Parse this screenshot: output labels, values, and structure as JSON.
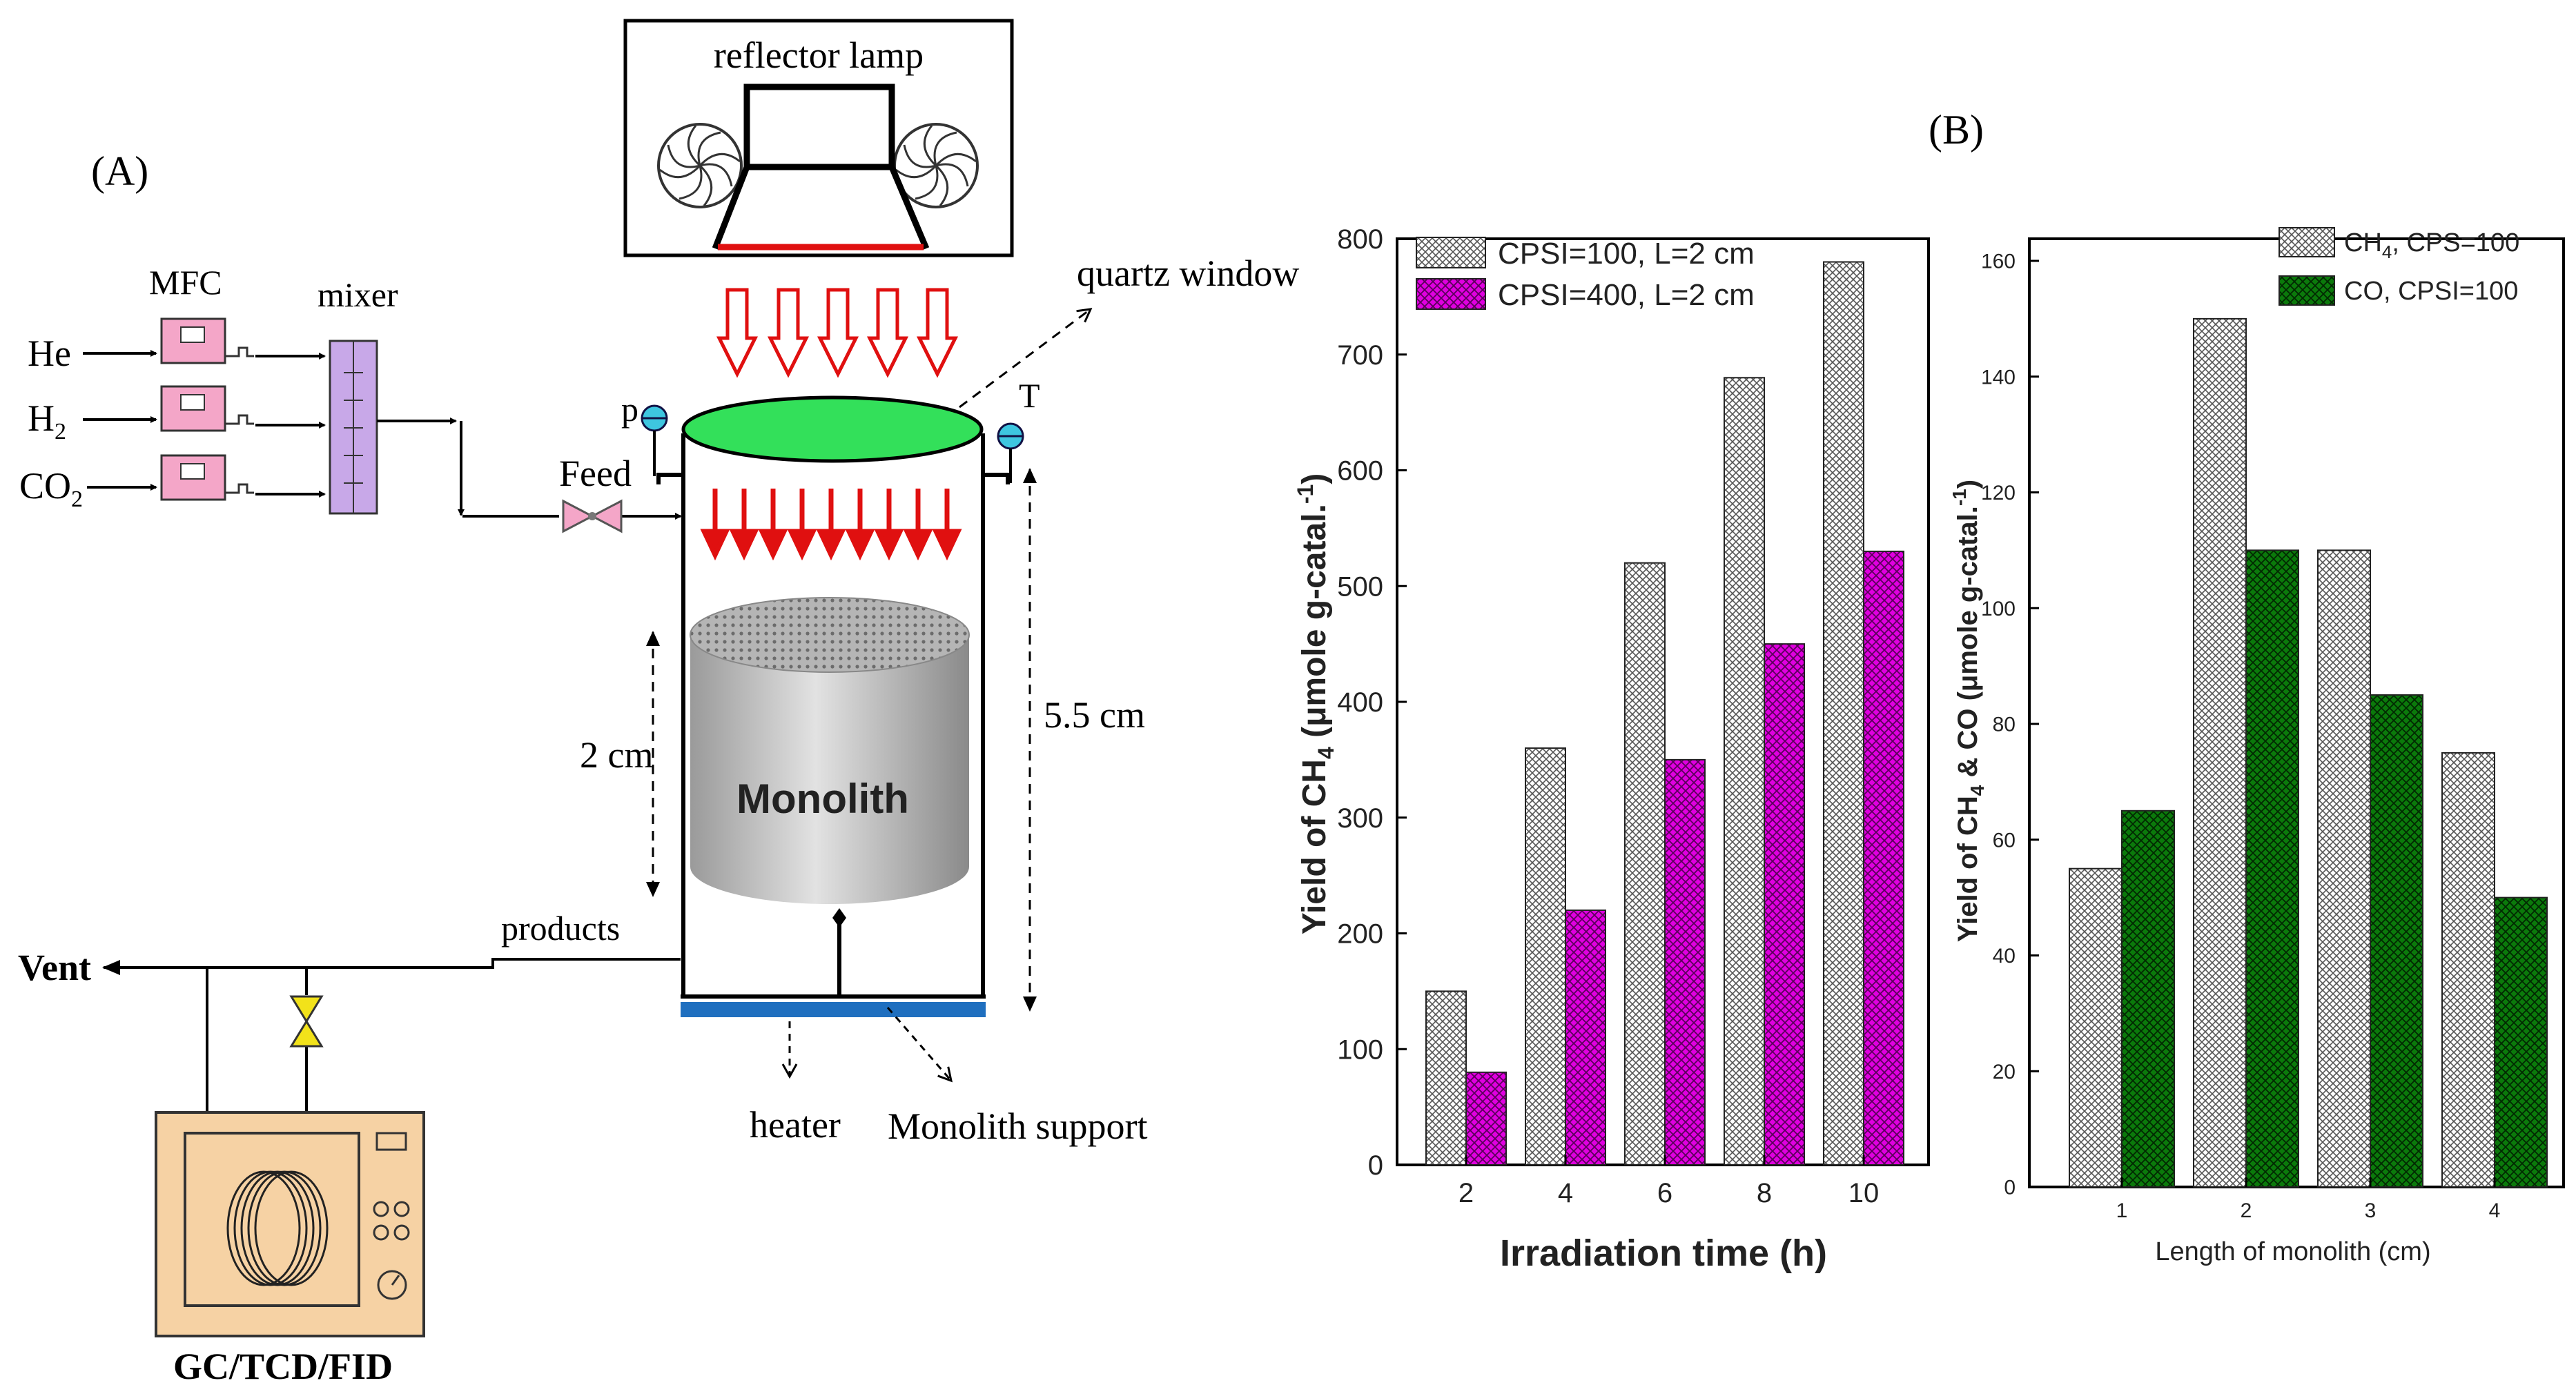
{
  "panel_a": {
    "label": "(A)",
    "reflector_lamp": "reflector lamp",
    "quartz_window": "quartz window",
    "mfc": "MFC",
    "mixer": "mixer",
    "gas_he": "He",
    "gas_h2": "H",
    "gas_h2_sub": "2",
    "gas_co2": "CO",
    "gas_co2_sub": "2",
    "feed": "Feed",
    "p": "p",
    "t": "T",
    "monolith": "Monolith",
    "dim_2cm": "2 cm",
    "dim_55cm": "5.5 cm",
    "products": "products",
    "vent": "Vent",
    "heater": "heater",
    "monolith_support": "Monolith support",
    "gc": "GC/TCD/FID"
  },
  "panel_b": {
    "label": "(B)"
  },
  "colors": {
    "pink_device": "#f4a6c8",
    "mixer_purple": "#c8a8e8",
    "quartz_green": "#33e05a",
    "arrow_red": "#e01010",
    "support_blue": "#1f6fbf",
    "gc_orange": "#f6d2a4",
    "gray_bar": "#b8b8b8",
    "magenta_bar": "#e000e0",
    "green_bar": "#0b7a0b"
  },
  "chart_data": [
    {
      "type": "bar",
      "categories": [
        "2",
        "4",
        "6",
        "8",
        "10"
      ],
      "series": [
        {
          "name": "CPSI=100, L=2 cm",
          "values": [
            150,
            360,
            520,
            680,
            780
          ]
        },
        {
          "name": "CPSI=400, L=2 cm",
          "values": [
            80,
            220,
            350,
            450,
            530
          ]
        }
      ],
      "xlabel": "Irradiation time (h)",
      "ylabel_parts": [
        "Yield of CH",
        "4",
        " (μmole g-catal.",
        "-1",
        ")"
      ],
      "ylim": [
        0,
        800
      ],
      "yticks": [
        "0",
        "100",
        "200",
        "300",
        "400",
        "500",
        "600",
        "700",
        "800"
      ],
      "legend": "top-left"
    },
    {
      "type": "bar",
      "categories": [
        "1",
        "2",
        "3",
        "4"
      ],
      "series": [
        {
          "name_parts": [
            "CH",
            "4",
            ", CPS=100"
          ],
          "values": [
            55,
            150,
            110,
            75
          ]
        },
        {
          "name_parts": [
            "CO,  CPSI=100"
          ],
          "values": [
            65,
            110,
            85,
            50
          ]
        }
      ],
      "xlabel": "Length of monolith (cm)",
      "ylabel_parts": [
        "Yield of CH",
        "4",
        " & CO (μmole g-catal.",
        "-1",
        ")"
      ],
      "ylim": [
        0,
        160
      ],
      "yticks": [
        "0",
        "20",
        "40",
        "60",
        "80",
        "100",
        "120",
        "140",
        "160"
      ],
      "legend": "top-right"
    }
  ]
}
